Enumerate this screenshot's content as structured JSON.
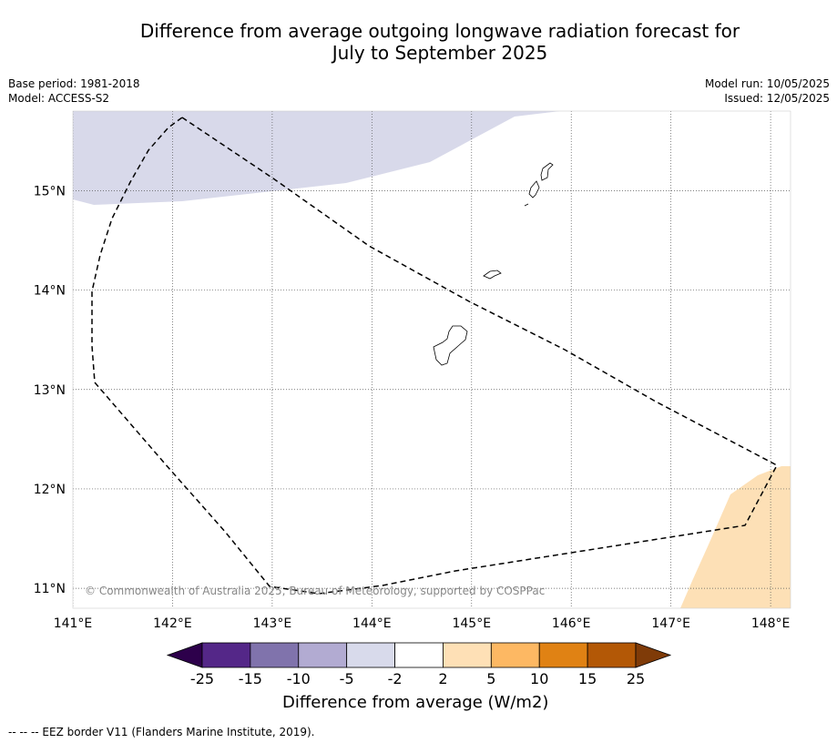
{
  "title": {
    "line1": "Difference from average outgoing longwave radiation forecast for",
    "line2": "July to September 2025"
  },
  "meta_left": {
    "base_period": "Base period: 1981-2018",
    "model": "Model: ACCESS-S2"
  },
  "meta_right": {
    "model_run": "Model run: 10/05/2025",
    "issued": "Issued: 12/05/2025"
  },
  "map": {
    "lon_range": [
      141.0,
      148.2
    ],
    "lat_range": [
      10.8,
      15.8
    ],
    "lat_ticks": [
      {
        "value": 15,
        "label": "15°N"
      },
      {
        "value": 14,
        "label": "14°N"
      },
      {
        "value": 13,
        "label": "13°N"
      },
      {
        "value": 12,
        "label": "12°N"
      },
      {
        "value": 11,
        "label": "11°N"
      }
    ],
    "lon_ticks": [
      {
        "value": 141,
        "label": "141°E"
      },
      {
        "value": 142,
        "label": "142°E"
      },
      {
        "value": 143,
        "label": "143°E"
      },
      {
        "value": 144,
        "label": "144°E"
      },
      {
        "value": 145,
        "label": "145°E"
      },
      {
        "value": 146,
        "label": "146°E"
      },
      {
        "value": 147,
        "label": "147°E"
      },
      {
        "value": 148,
        "label": "148°E"
      }
    ],
    "gridlines": true,
    "copyright": "© Commonwealth of Australia 2025, Bureau of Meteorology, supported by COSPPac",
    "colors": {
      "below_avg_fill": "#d8d9ea",
      "above_avg_fill": "#fde0b6",
      "eez_line": "#000000"
    }
  },
  "colorbar": {
    "title": "Difference from average (W/m2)",
    "tick_labels": [
      "-25",
      "-15",
      "-10",
      "-5",
      "-2",
      "2",
      "5",
      "10",
      "15",
      "25"
    ],
    "colors": [
      "#2d004b",
      "#542788",
      "#8073ac",
      "#b2abd2",
      "#d8daeb",
      "#ffffff",
      "#fee0b6",
      "#fdb863",
      "#e08214",
      "#b35806",
      "#7f3b08"
    ]
  },
  "footer": {
    "legend_text": "--  --  -- EEZ border V11 (Flanders Marine Institute, 2019)."
  }
}
